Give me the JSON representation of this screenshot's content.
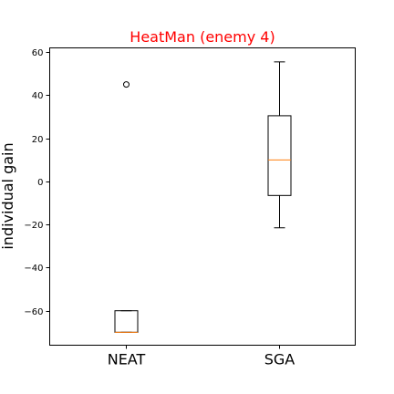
{
  "chart_data": {
    "type": "box",
    "title": "HeatMan (enemy 4)",
    "title_color": "#ff0000",
    "xlabel": "",
    "ylabel": "individual gain",
    "ylim": [
      -76,
      62
    ],
    "yticks": [
      60,
      40,
      20,
      0,
      -20,
      -40,
      -60
    ],
    "ytick_labels": [
      "60",
      "40",
      "20",
      "0",
      "−20",
      "−40",
      "−60"
    ],
    "categories": [
      "NEAT",
      "SGA"
    ],
    "median_color": "#ff7f0e",
    "grid": false,
    "boxes": [
      {
        "category": "NEAT",
        "whisker_low": -70,
        "q1": -70,
        "median": -70,
        "q3": -60,
        "whisker_high": -60,
        "outliers": [
          45
        ]
      },
      {
        "category": "SGA",
        "whisker_low": -21.5,
        "q1": -6.5,
        "median": 10,
        "q3": 30.5,
        "whisker_high": 55.5,
        "outliers": []
      }
    ]
  }
}
